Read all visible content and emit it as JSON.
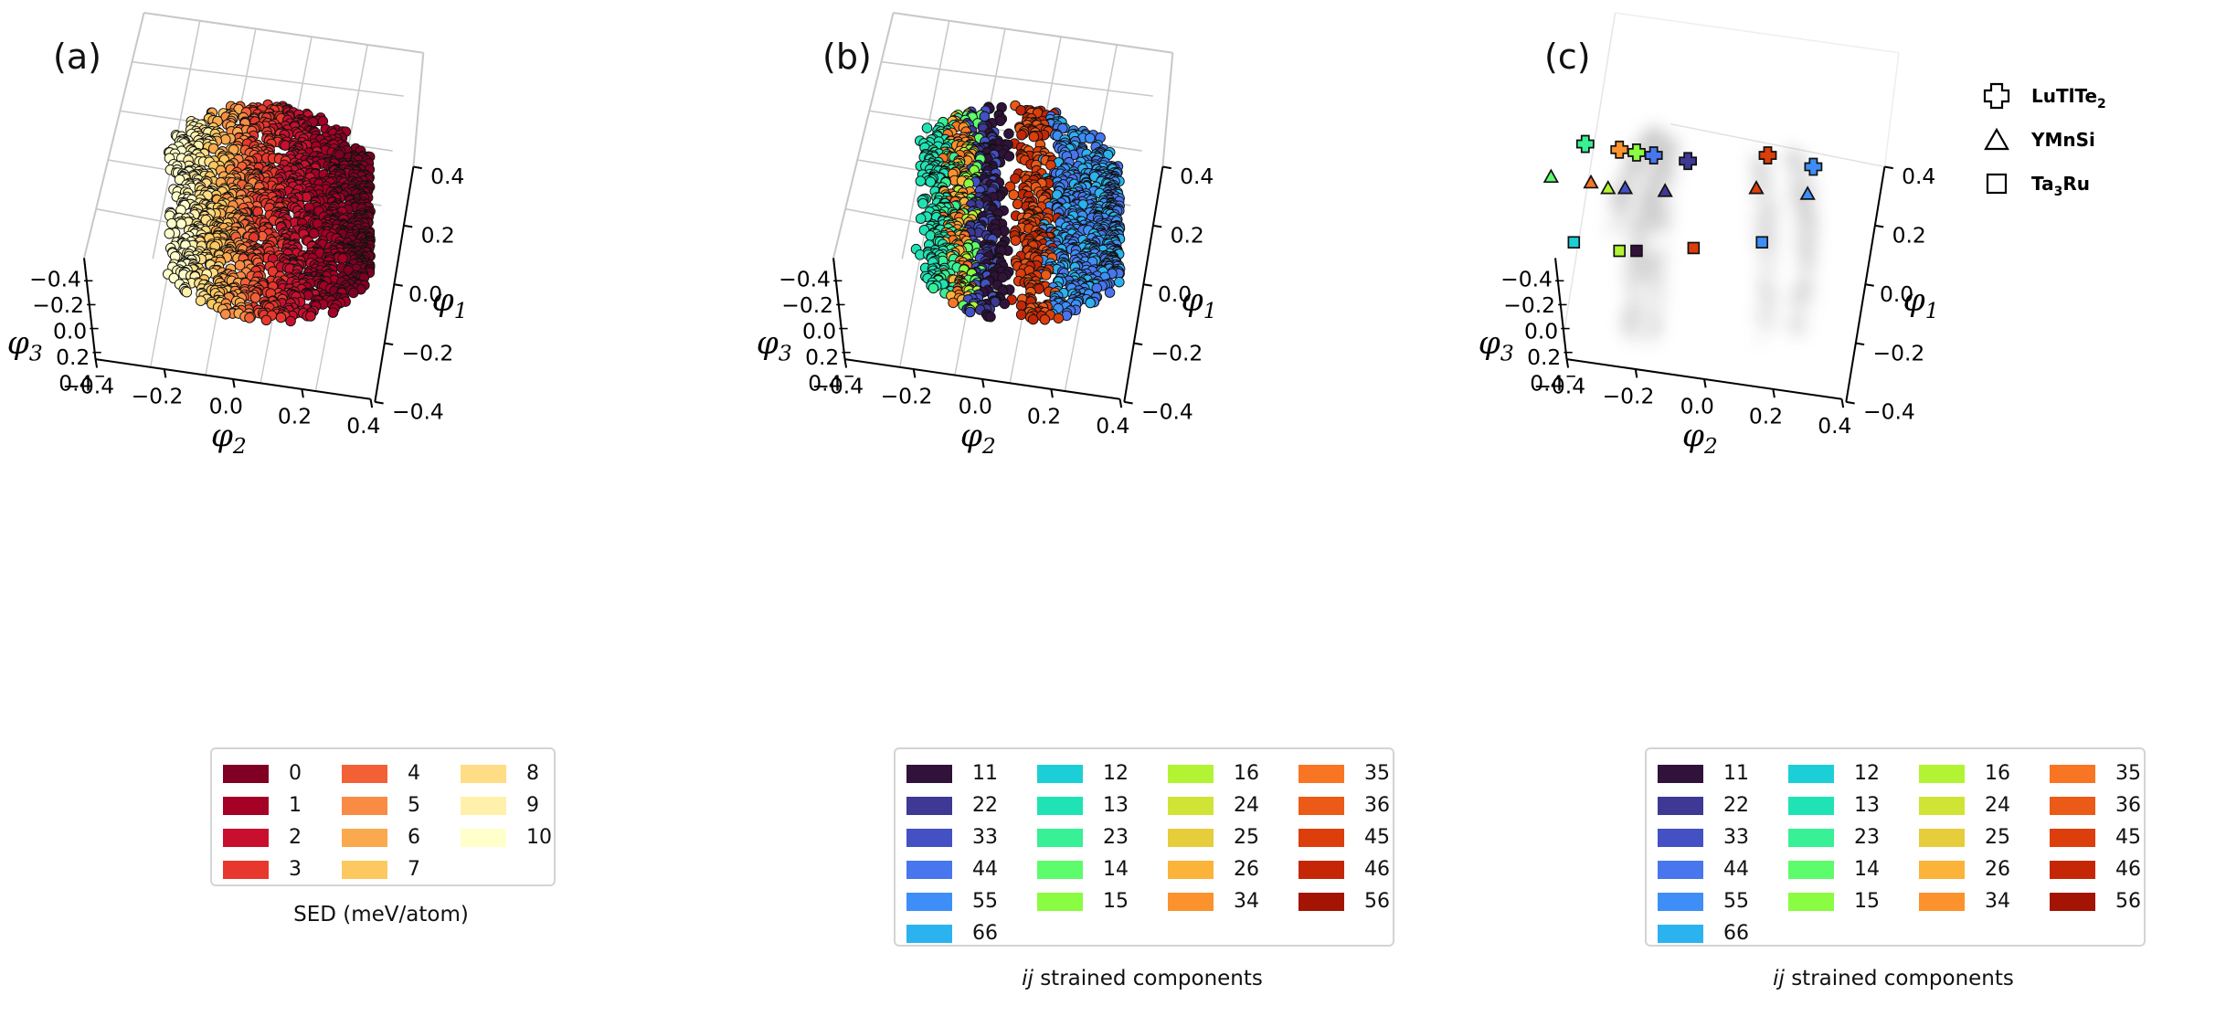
{
  "panels": [
    {
      "id": "a",
      "label": "(a)",
      "legend_title": "SED (meV/atom)"
    },
    {
      "id": "b",
      "label": "(b)",
      "legend_title_ital": "ij",
      "legend_title_rest": " strained components"
    },
    {
      "id": "c",
      "label": "(c)",
      "legend_title_ital": "ij",
      "legend_title_rest": " strained components"
    }
  ],
  "axes": {
    "phi1_label": "φ1",
    "phi2_label": "φ2",
    "phi3_label": "φ3",
    "phi1_ticks": [
      "0.4",
      "0.2",
      "0.0",
      "−0.2",
      "−0.4"
    ],
    "phi2_ticks": [
      "−0.4",
      "−0.2",
      "0.0",
      "0.2",
      "0.4"
    ],
    "phi3_ticks": [
      "−0.4",
      "−0.2",
      "0.0",
      "0.2",
      "0.4"
    ]
  },
  "sed_legend": [
    {
      "label": "0",
      "color": "#7f0023"
    },
    {
      "label": "1",
      "color": "#a50026"
    },
    {
      "label": "2",
      "color": "#c8102e"
    },
    {
      "label": "3",
      "color": "#e8372c"
    },
    {
      "label": "4",
      "color": "#f46036"
    },
    {
      "label": "5",
      "color": "#f98b45"
    },
    {
      "label": "6",
      "color": "#fba94e"
    },
    {
      "label": "7",
      "color": "#fdc860"
    },
    {
      "label": "8",
      "color": "#fedd86"
    },
    {
      "label": "9",
      "color": "#fff0ac"
    },
    {
      "label": "10",
      "color": "#ffffcc"
    }
  ],
  "ij_legend": [
    {
      "label": "11",
      "color": "#30123b"
    },
    {
      "label": "22",
      "color": "#3e3994"
    },
    {
      "label": "33",
      "color": "#4451c4"
    },
    {
      "label": "44",
      "color": "#4776ee"
    },
    {
      "label": "55",
      "color": "#3d8ff7"
    },
    {
      "label": "66",
      "color": "#2ab3ef"
    },
    {
      "label": "12",
      "color": "#1ccfd6"
    },
    {
      "label": "13",
      "color": "#1fe3b4"
    },
    {
      "label": "23",
      "color": "#38f095"
    },
    {
      "label": "14",
      "color": "#5dfc6c"
    },
    {
      "label": "15",
      "color": "#8afc41"
    },
    {
      "label": "16",
      "color": "#b2f434"
    },
    {
      "label": "24",
      "color": "#d0e436"
    },
    {
      "label": "25",
      "color": "#e6cd3b"
    },
    {
      "label": "26",
      "color": "#fbb33a"
    },
    {
      "label": "34",
      "color": "#fb922e"
    },
    {
      "label": "35",
      "color": "#f87524"
    },
    {
      "label": "36",
      "color": "#ec5a17"
    },
    {
      "label": "45",
      "color": "#dc3e0c"
    },
    {
      "label": "46",
      "color": "#c52706"
    },
    {
      "label": "56",
      "color": "#a31402"
    }
  ],
  "material_legend": [
    {
      "label": "LuTlTe",
      "sub": "2",
      "marker": "plus"
    },
    {
      "label": "YMnSi",
      "sub": "",
      "marker": "triangle"
    },
    {
      "label": "Ta",
      "sub": "3",
      "label_tail": "Ru",
      "marker": "square"
    }
  ],
  "chart_data": [
    {
      "type": "scatter",
      "title": "",
      "xlabel": "φ2",
      "ylabel": "φ1",
      "zlabel": "φ3",
      "xlim": [
        -0.4,
        0.4
      ],
      "ylim": [
        -0.4,
        0.4
      ],
      "zlim": [
        -0.4,
        0.4
      ],
      "color_by": "SED (meV/atom)",
      "description_of_distribution": "curved shell of points banded by SED value from 0 (right) to 10 (left)"
    },
    {
      "type": "scatter",
      "title": "",
      "xlabel": "φ2",
      "ylabel": "φ1",
      "zlabel": "φ3",
      "xlim": [
        -0.4,
        0.4
      ],
      "ylim": [
        -0.4,
        0.4
      ],
      "zlim": [
        -0.4,
        0.4
      ],
      "color_by": "ij strained components"
    },
    {
      "type": "scatter",
      "title": "",
      "xlabel": "φ2",
      "ylabel": "φ1",
      "zlabel": "φ3",
      "xlim": [
        -0.4,
        0.4
      ],
      "ylim": [
        -0.4,
        0.4
      ],
      "zlim": [
        -0.4,
        0.4
      ],
      "series": [
        {
          "name": "LuTlTe2",
          "marker": "plus",
          "points": [
            {
              "x": -0.22,
              "y": 0.3,
              "color": "#38f095"
            },
            {
              "x": -0.16,
              "y": 0.28,
              "color": "#fb922e"
            },
            {
              "x": -0.13,
              "y": 0.27,
              "color": "#8afc41"
            },
            {
              "x": -0.1,
              "y": 0.26,
              "color": "#4776ee"
            },
            {
              "x": -0.04,
              "y": 0.24,
              "color": "#3e3994"
            },
            {
              "x": 0.1,
              "y": 0.26,
              "color": "#dc3e0c"
            },
            {
              "x": 0.18,
              "y": 0.22,
              "color": "#3d8ff7"
            }
          ]
        },
        {
          "name": "YMnSi",
          "marker": "triangle",
          "points": [
            {
              "x": -0.28,
              "y": 0.18,
              "color": "#5dfc6c"
            },
            {
              "x": -0.21,
              "y": 0.16,
              "color": "#f87524"
            },
            {
              "x": -0.18,
              "y": 0.14,
              "color": "#b2f434"
            },
            {
              "x": -0.15,
              "y": 0.14,
              "color": "#4451c4"
            },
            {
              "x": -0.08,
              "y": 0.13,
              "color": "#3e3994"
            },
            {
              "x": 0.08,
              "y": 0.14,
              "color": "#dc3e0c"
            },
            {
              "x": 0.17,
              "y": 0.12,
              "color": "#3d8ff7"
            }
          ]
        },
        {
          "name": "Ta3Ru",
          "marker": "square",
          "points": [
            {
              "x": -0.24,
              "y": -0.05,
              "color": "#1ccfd6"
            },
            {
              "x": -0.16,
              "y": -0.08,
              "color": "#b2f434"
            },
            {
              "x": -0.13,
              "y": -0.08,
              "color": "#30123b"
            },
            {
              "x": -0.03,
              "y": -0.07,
              "color": "#dc3e0c"
            },
            {
              "x": 0.09,
              "y": -0.05,
              "color": "#3d8ff7"
            }
          ]
        }
      ]
    }
  ]
}
